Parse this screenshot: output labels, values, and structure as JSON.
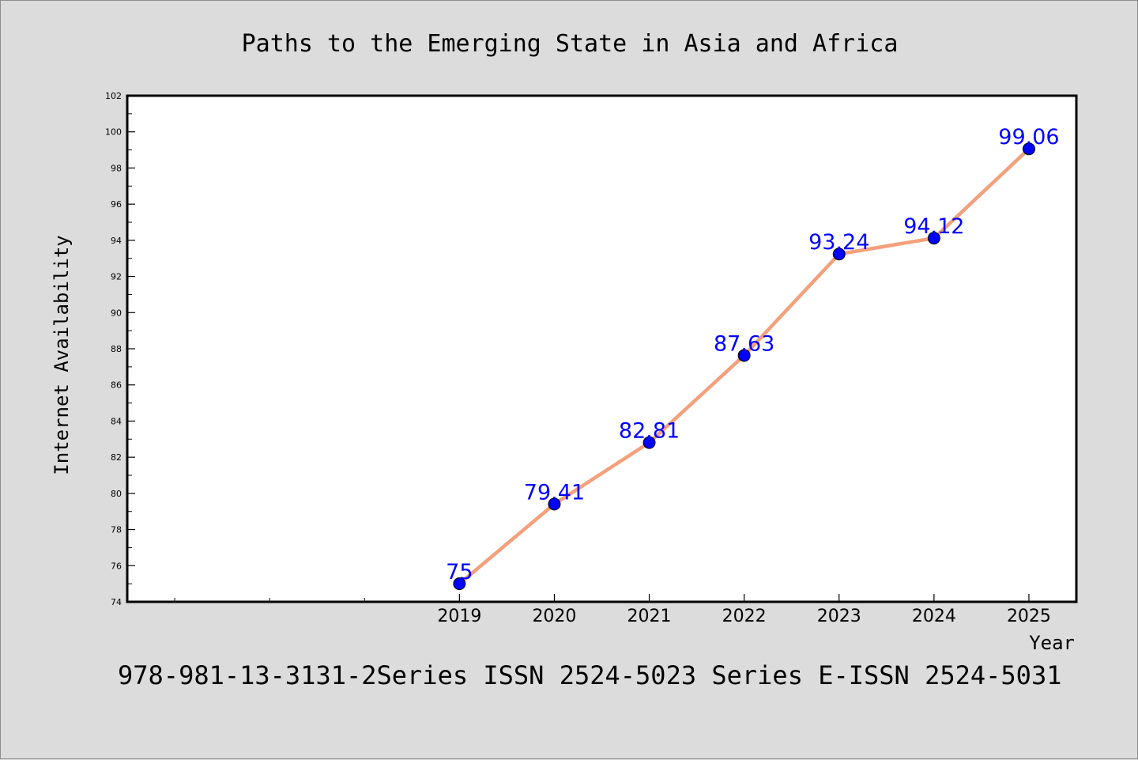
{
  "chart_data": {
    "type": "line",
    "title": "Paths to the Emerging State in Asia and Africa",
    "xlabel": "Year",
    "ylabel": "Internet Availability",
    "caption": "978-981-13-3131-2Series ISSN 2524-5023 Series E-ISSN 2524-5031",
    "categories": [
      "2019",
      "2020",
      "2021",
      "2022",
      "2023",
      "2024",
      "2025"
    ],
    "series": [
      {
        "values": [
          75,
          79.41,
          82.81,
          87.63,
          93.24,
          94.12,
          99.06
        ],
        "labels": [
          "75",
          "79.41",
          "82.81",
          "87.63",
          "93.24",
          "94.12",
          "99.06"
        ],
        "line_color": "#f4a07c",
        "marker_color": "#0000ff",
        "label_color": "#0000ff"
      }
    ],
    "ylim": [
      74,
      102
    ],
    "yticks": [
      "74",
      "76",
      "78",
      "80",
      "82",
      "84",
      "86",
      "88",
      "90",
      "92",
      "94",
      "96",
      "98",
      "100",
      "102"
    ],
    "grid": false,
    "legend": "none",
    "colors": {
      "background": "#dcdcdc",
      "plot_background": "#ffffff",
      "axis": "#000000"
    }
  }
}
